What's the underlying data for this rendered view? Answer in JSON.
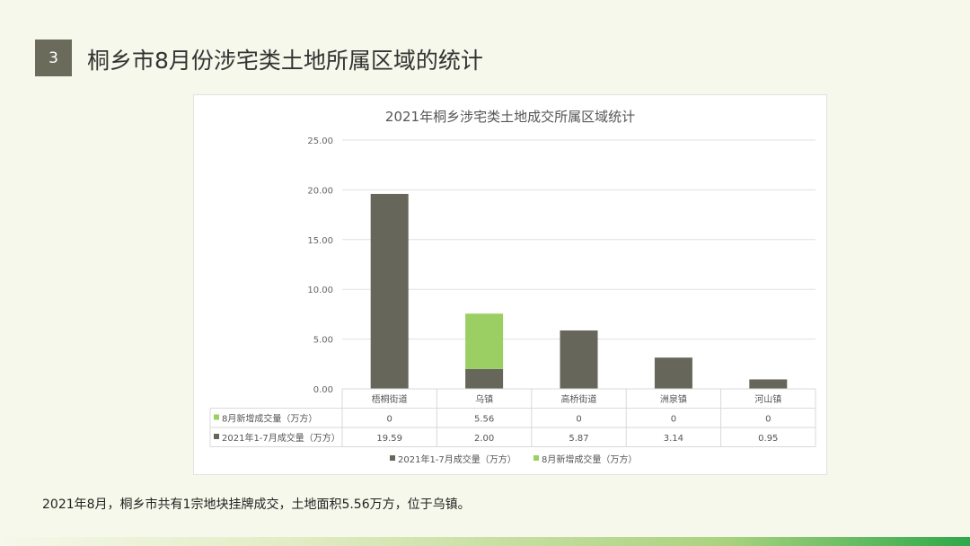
{
  "slide": {
    "number": "3",
    "title": "桐乡市8月份涉宅类土地所属区域的统计",
    "caption": "2021年8月，桐乡市共有1宗地块挂牌成交，土地面积5.56万方，位于乌镇。"
  },
  "chart_data": {
    "type": "bar",
    "stacked": true,
    "title": "2021年桐乡涉宅类土地成交所属区域统计",
    "categories": [
      "梧桐街道",
      "乌镇",
      "高桥街道",
      "洲泉镇",
      "河山镇"
    ],
    "series": [
      {
        "name": "2021年1-7月成交量（万方）",
        "values": [
          19.59,
          2.0,
          5.87,
          3.14,
          0.95
        ],
        "labels": [
          "19.59",
          "2.00",
          "5.87",
          "3.14",
          "0.95"
        ],
        "color": "#67665a"
      },
      {
        "name": "8月新增成交量（万方）",
        "values": [
          0,
          5.56,
          0,
          0,
          0
        ],
        "labels": [
          "0",
          "5.56",
          "0",
          "0",
          "0"
        ],
        "color": "#9bcf63"
      }
    ],
    "table_order": [
      1,
      0
    ],
    "yticks": [
      "0.00",
      "5.00",
      "10.00",
      "15.00",
      "20.00",
      "25.00"
    ],
    "ylim": [
      0,
      25
    ],
    "grid": true,
    "legend": "bottom",
    "xlabel": "",
    "ylabel": ""
  }
}
